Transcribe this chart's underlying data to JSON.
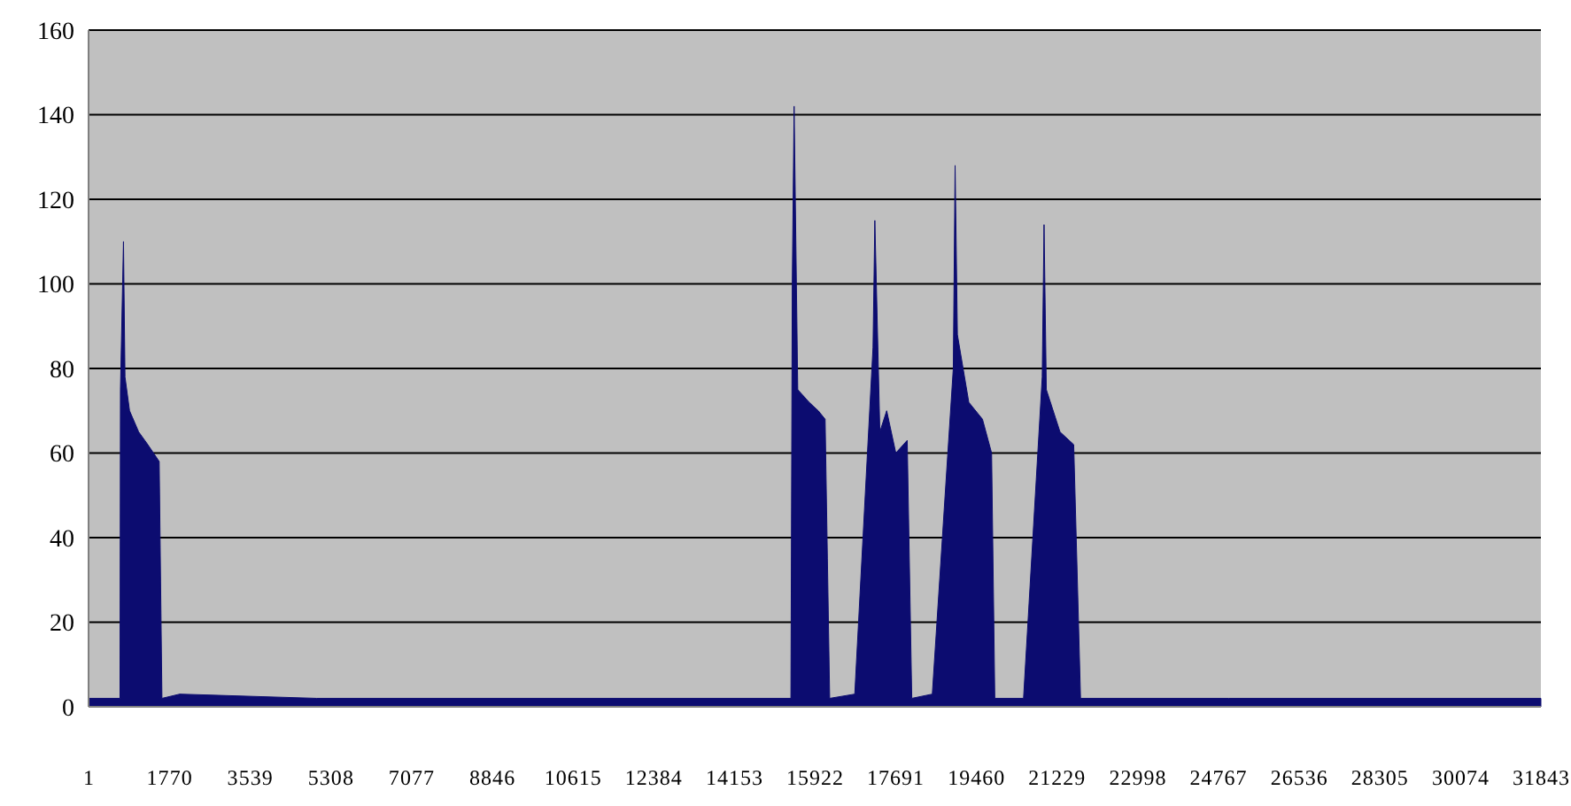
{
  "chart_data": {
    "type": "area",
    "xlim": [
      1,
      31843
    ],
    "ylim": [
      0,
      160
    ],
    "yticks": [
      0,
      20,
      40,
      60,
      80,
      100,
      120,
      140,
      160
    ],
    "xticks": [
      1,
      1770,
      3539,
      5308,
      7077,
      8846,
      10615,
      12384,
      14153,
      15922,
      17691,
      19460,
      21229,
      22998,
      24767,
      26536,
      28305,
      30074,
      31843
    ],
    "grid": "y",
    "series": [
      {
        "color": "#0c0c70",
        "x": [
          1,
          690,
          700,
          767,
          800,
          900,
          1100,
          1300,
          1550,
          1610,
          2000,
          5000,
          10000,
          15400,
          15430,
          15470,
          15550,
          15800,
          16000,
          16150,
          16200,
          16250,
          16800,
          17200,
          17240,
          17350,
          17500,
          17700,
          17950,
          18050,
          18500,
          18960,
          19000,
          19050,
          19300,
          19600,
          19800,
          19870,
          20500,
          20910,
          20950,
          21000,
          21300,
          21600,
          21750,
          25000,
          31843
        ],
        "values": [
          2,
          2,
          75,
          110,
          78,
          70,
          65,
          62,
          58,
          2,
          3,
          2,
          2,
          2,
          100,
          142,
          75,
          72,
          70,
          68,
          35,
          2,
          3,
          85,
          115,
          65,
          70,
          60,
          63,
          2,
          3,
          80,
          128,
          88,
          72,
          68,
          60,
          2,
          2,
          78,
          114,
          75,
          65,
          62,
          2,
          2,
          2
        ]
      }
    ]
  }
}
